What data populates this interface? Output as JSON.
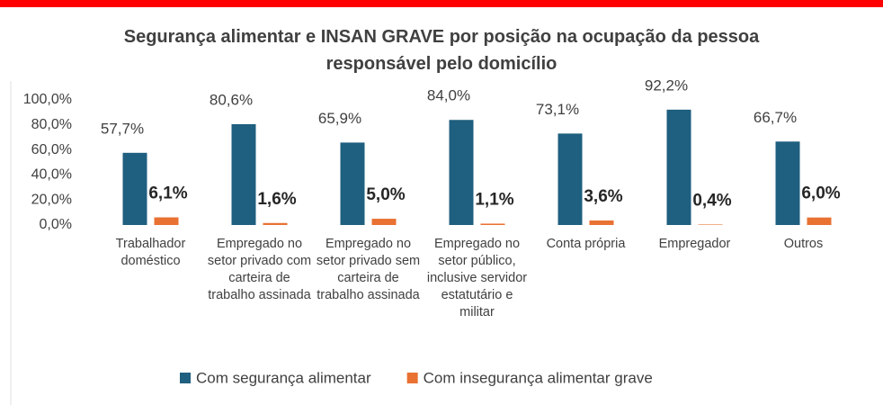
{
  "chart_data": {
    "type": "bar",
    "title": "Segurança alimentar e INSAN GRAVE por posição na ocupação da pessoa responsável pelo domicílio",
    "categories": [
      "Trabalhador doméstico",
      "Empregado no setor privado com carteira de trabalho assinada",
      "Empregado no setor privado sem carteira de trabalho assinada",
      "Empregado no setor público, inclusive servidor estatutário e militar",
      "Conta própria",
      "Empregador",
      "Outros"
    ],
    "series": [
      {
        "name": "Com segurança alimentar",
        "color": "#1f5f7f",
        "values": [
          57.7,
          80.6,
          65.9,
          84.0,
          73.1,
          92.2,
          66.7
        ],
        "value_labels": [
          "57,7%",
          "80,6%",
          "65,9%",
          "84,0%",
          "73,1%",
          "92,2%",
          "66,7%"
        ]
      },
      {
        "name": "Com insegurança alimentar grave",
        "color": "#e97132",
        "values": [
          6.1,
          1.6,
          5.0,
          1.1,
          3.6,
          0.4,
          6.0
        ],
        "value_labels": [
          "6,1%",
          "1,6%",
          "5,0%",
          "1,1%",
          "3,6%",
          "0,4%",
          "6,0%"
        ]
      }
    ],
    "ylim": [
      0,
      100
    ],
    "yticks": [
      {
        "value": 0,
        "label": "0,0%"
      },
      {
        "value": 20,
        "label": "20,0%"
      },
      {
        "value": 40,
        "label": "40,0%"
      },
      {
        "value": 60,
        "label": "60,0%"
      },
      {
        "value": 80,
        "label": "80,0%"
      },
      {
        "value": 100,
        "label": "100,0%"
      }
    ],
    "grid": false,
    "legend": "bottom"
  }
}
